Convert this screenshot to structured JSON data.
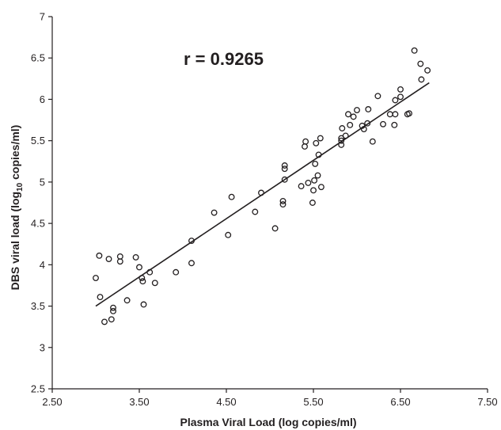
{
  "chart_data": {
    "type": "scatter",
    "annotation": "r = 0.9265",
    "xlabel": "Plasma Viral Load (log copies/ml)",
    "ylabel_parts": {
      "pre": "DBS viral load (log",
      "sub": "10",
      "post": " copies/ml)"
    },
    "xlim": [
      2.5,
      7.5
    ],
    "ylim": [
      2.5,
      7
    ],
    "xticks": [
      "2.50",
      "3.50",
      "4.50",
      "5.50",
      "6.50",
      "7.50"
    ],
    "yticks": [
      "2.5",
      "3",
      "3.5",
      "4",
      "4.5",
      "5",
      "5.5",
      "6",
      "6.5",
      "7"
    ],
    "grid": false,
    "marker": "open-circle",
    "trendline": {
      "x": [
        3.0,
        6.83
      ],
      "y": [
        3.5,
        6.2
      ]
    },
    "points": [
      [
        3.0,
        3.84
      ],
      [
        3.04,
        4.11
      ],
      [
        3.05,
        3.61
      ],
      [
        3.1,
        3.31
      ],
      [
        3.15,
        4.07
      ],
      [
        3.18,
        3.34
      ],
      [
        3.2,
        3.44
      ],
      [
        3.2,
        3.48
      ],
      [
        3.28,
        4.04
      ],
      [
        3.28,
        4.1
      ],
      [
        3.36,
        3.57
      ],
      [
        3.46,
        4.09
      ],
      [
        3.5,
        3.97
      ],
      [
        3.53,
        3.84
      ],
      [
        3.54,
        3.8
      ],
      [
        3.55,
        3.52
      ],
      [
        3.62,
        3.91
      ],
      [
        3.68,
        3.78
      ],
      [
        3.92,
        3.91
      ],
      [
        4.1,
        4.02
      ],
      [
        4.1,
        4.29
      ],
      [
        4.36,
        4.63
      ],
      [
        4.52,
        4.36
      ],
      [
        4.56,
        4.82
      ],
      [
        4.83,
        4.64
      ],
      [
        4.9,
        4.87
      ],
      [
        5.06,
        4.44
      ],
      [
        5.15,
        4.73
      ],
      [
        5.15,
        4.77
      ],
      [
        5.17,
        5.03
      ],
      [
        5.17,
        5.16
      ],
      [
        5.17,
        5.2
      ],
      [
        5.36,
        4.95
      ],
      [
        5.4,
        5.43
      ],
      [
        5.41,
        5.49
      ],
      [
        5.44,
        4.99
      ],
      [
        5.49,
        4.75
      ],
      [
        5.5,
        4.9
      ],
      [
        5.51,
        5.02
      ],
      [
        5.52,
        5.22
      ],
      [
        5.53,
        5.47
      ],
      [
        5.55,
        5.08
      ],
      [
        5.56,
        5.33
      ],
      [
        5.58,
        5.53
      ],
      [
        5.59,
        4.94
      ],
      [
        5.82,
        5.45
      ],
      [
        5.82,
        5.5
      ],
      [
        5.82,
        5.53
      ],
      [
        5.83,
        5.65
      ],
      [
        5.87,
        5.56
      ],
      [
        5.9,
        5.82
      ],
      [
        5.92,
        5.69
      ],
      [
        5.96,
        5.79
      ],
      [
        6.0,
        5.87
      ],
      [
        6.06,
        5.68
      ],
      [
        6.08,
        5.64
      ],
      [
        6.12,
        5.71
      ],
      [
        6.13,
        5.88
      ],
      [
        6.18,
        5.49
      ],
      [
        6.24,
        6.04
      ],
      [
        6.3,
        5.7
      ],
      [
        6.38,
        5.82
      ],
      [
        6.43,
        5.69
      ],
      [
        6.44,
        5.82
      ],
      [
        6.44,
        5.99
      ],
      [
        6.5,
        6.03
      ],
      [
        6.5,
        6.12
      ],
      [
        6.58,
        5.82
      ],
      [
        6.6,
        5.83
      ],
      [
        6.66,
        6.59
      ],
      [
        6.73,
        6.43
      ],
      [
        6.74,
        6.24
      ],
      [
        6.81,
        6.35
      ]
    ]
  }
}
